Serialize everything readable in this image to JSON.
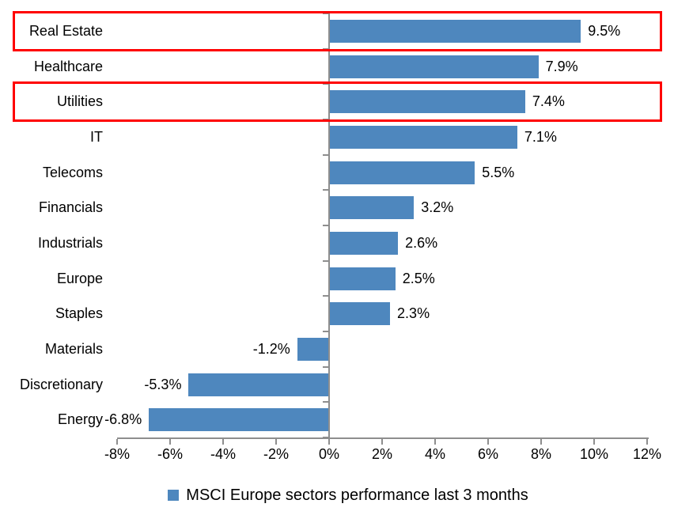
{
  "chart_data": {
    "type": "bar",
    "orientation": "horizontal",
    "title": "",
    "categories": [
      "Real Estate",
      "Healthcare",
      "Utilities",
      "IT",
      "Telecoms",
      "Financials",
      "Industrials",
      "Europe",
      "Staples",
      "Materials",
      "Discretionary",
      "Energy"
    ],
    "values": [
      9.5,
      7.9,
      7.4,
      7.1,
      5.5,
      3.2,
      2.6,
      2.5,
      2.3,
      -1.2,
      -5.3,
      -6.8
    ],
    "data_labels": [
      "9.5%",
      "7.9%",
      "7.4%",
      "7.1%",
      "5.5%",
      "3.2%",
      "2.6%",
      "2.5%",
      "2.3%",
      "-1.2%",
      "-5.3%",
      "-6.8%"
    ],
    "highlighted_categories": [
      "Real Estate",
      "Utilities"
    ],
    "x_axis": {
      "min": -8,
      "max": 12,
      "step": 2,
      "ticks": [
        "-8%",
        "-6%",
        "-4%",
        "-2%",
        "0%",
        "2%",
        "4%",
        "6%",
        "8%",
        "10%",
        "12%"
      ]
    },
    "legend": {
      "label": "MSCI Europe sectors performance last 3 months",
      "position": "bottom"
    },
    "colors": {
      "bar": "#4E87BE",
      "highlight_border": "#FF0000",
      "axis": "#8E8E8E",
      "text": "#000000"
    },
    "grid": false
  }
}
